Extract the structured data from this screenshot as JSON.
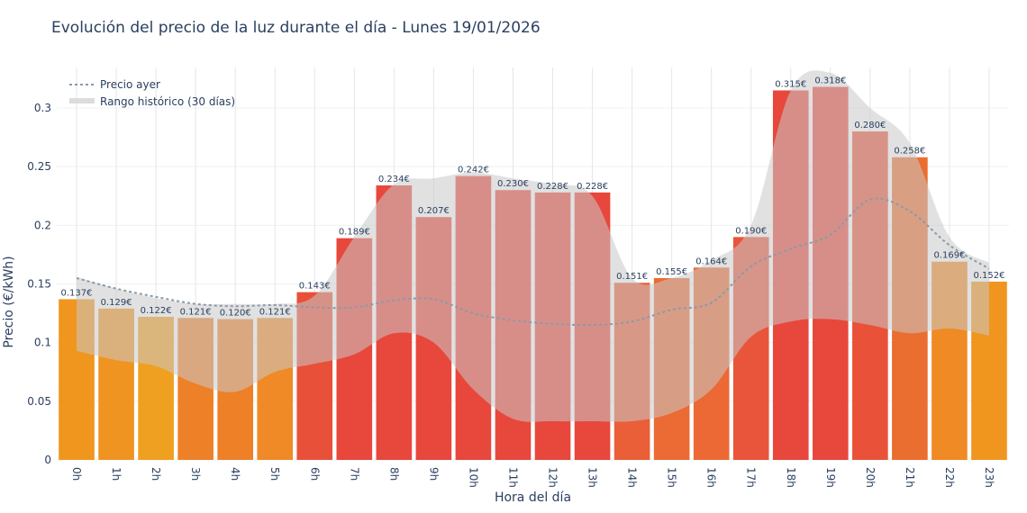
{
  "chart_data": {
    "type": "bar",
    "title": "Evolución del precio de la luz durante el día - Lunes 19/01/2026",
    "xlabel": "Hora del día",
    "ylabel": "Precio (€/kWh)",
    "ylim": [
      0,
      0.33
    ],
    "yticks": [
      0,
      0.05,
      0.1,
      0.15,
      0.2,
      0.25,
      0.3
    ],
    "ytick_labels": [
      "0",
      "0.05",
      "0.1",
      "0.15",
      "0.2",
      "0.25",
      "0.3"
    ],
    "grid": true,
    "legend_position": "top-left",
    "categories": [
      "0h",
      "1h",
      "2h",
      "3h",
      "4h",
      "5h",
      "6h",
      "7h",
      "8h",
      "9h",
      "10h",
      "11h",
      "12h",
      "13h",
      "14h",
      "15h",
      "16h",
      "17h",
      "18h",
      "19h",
      "20h",
      "21h",
      "22h",
      "23h"
    ],
    "values": [
      0.137,
      0.129,
      0.122,
      0.121,
      0.12,
      0.121,
      0.143,
      0.189,
      0.234,
      0.207,
      0.242,
      0.23,
      0.228,
      0.228,
      0.151,
      0.155,
      0.164,
      0.19,
      0.315,
      0.318,
      0.28,
      0.258,
      0.169,
      0.152
    ],
    "data_labels": [
      "0.137€",
      "0.129€",
      "0.122€",
      "0.121€",
      "0.120€",
      "0.121€",
      "0.143€",
      "0.189€",
      "0.234€",
      "0.207€",
      "0.242€",
      "0.230€",
      "0.228€",
      "0.228€",
      "0.151€",
      "0.155€",
      "0.164€",
      "0.190€",
      "0.315€",
      "0.318€",
      "0.280€",
      "0.258€",
      "0.169€",
      "0.152€"
    ],
    "bar_colors": [
      "#f0961e",
      "#ef9420",
      "#efa020",
      "#ee8028",
      "#ee8028",
      "#f08a26",
      "#e9503a",
      "#e8473c",
      "#e8473c",
      "#e8473c",
      "#e8473c",
      "#e8473c",
      "#e8473c",
      "#e8473c",
      "#ea5e38",
      "#ec6b34",
      "#ec6834",
      "#e9553a",
      "#e8473c",
      "#e8473c",
      "#e95238",
      "#ea6e30",
      "#f08a25",
      "#f0961e"
    ],
    "series": [
      {
        "name": "Precio ayer",
        "type": "line",
        "style": "dotted",
        "color": "#8a9aa8",
        "values": [
          0.155,
          0.146,
          0.139,
          0.133,
          0.131,
          0.132,
          0.13,
          0.13,
          0.136,
          0.137,
          0.125,
          0.119,
          0.116,
          0.115,
          0.118,
          0.128,
          0.134,
          0.165,
          0.18,
          0.192,
          0.222,
          0.212,
          0.183,
          0.163
        ]
      },
      {
        "name": "Rango histórico (30 días)",
        "type": "band",
        "color": "#d3d3d3",
        "upper": [
          0.156,
          0.146,
          0.138,
          0.133,
          0.133,
          0.133,
          0.14,
          0.19,
          0.235,
          0.24,
          0.245,
          0.24,
          0.235,
          0.225,
          0.155,
          0.155,
          0.17,
          0.2,
          0.315,
          0.33,
          0.3,
          0.27,
          0.19,
          0.168
        ],
        "lower": [
          0.093,
          0.085,
          0.08,
          0.065,
          0.058,
          0.075,
          0.082,
          0.09,
          0.108,
          0.1,
          0.06,
          0.035,
          0.033,
          0.033,
          0.033,
          0.04,
          0.06,
          0.105,
          0.118,
          0.12,
          0.115,
          0.108,
          0.112,
          0.106
        ]
      }
    ]
  }
}
